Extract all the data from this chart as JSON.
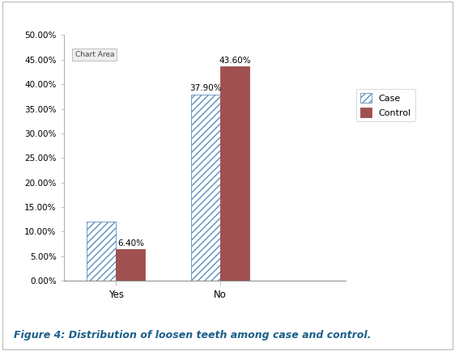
{
  "categories": [
    "Yes",
    "No"
  ],
  "case_values": [
    12.0,
    37.9
  ],
  "control_values": [
    6.4,
    43.6
  ],
  "case_color": "#ffffff",
  "case_hatch_color": "#5b8fbe",
  "control_color": "#a05050",
  "ylim": [
    0,
    0.5
  ],
  "yticks": [
    0.0,
    0.05,
    0.1,
    0.15,
    0.2,
    0.25,
    0.3,
    0.35,
    0.4,
    0.45,
    0.5
  ],
  "ytick_labels": [
    "0.00%",
    "5.00%",
    "10.00%",
    "15.00%",
    "20.00%",
    "25.00%",
    "30.00%",
    "35.00%",
    "40.00%",
    "45.00%",
    "50.00%"
  ],
  "legend_labels": [
    "Case",
    "Control"
  ],
  "chart_area_label": "Chart Area",
  "figure_caption": "Figure 4: Distribution of loosen teeth among case and control.",
  "bar_width": 0.28,
  "figure_bg": "#ffffff",
  "plot_bg": "#ffffff"
}
